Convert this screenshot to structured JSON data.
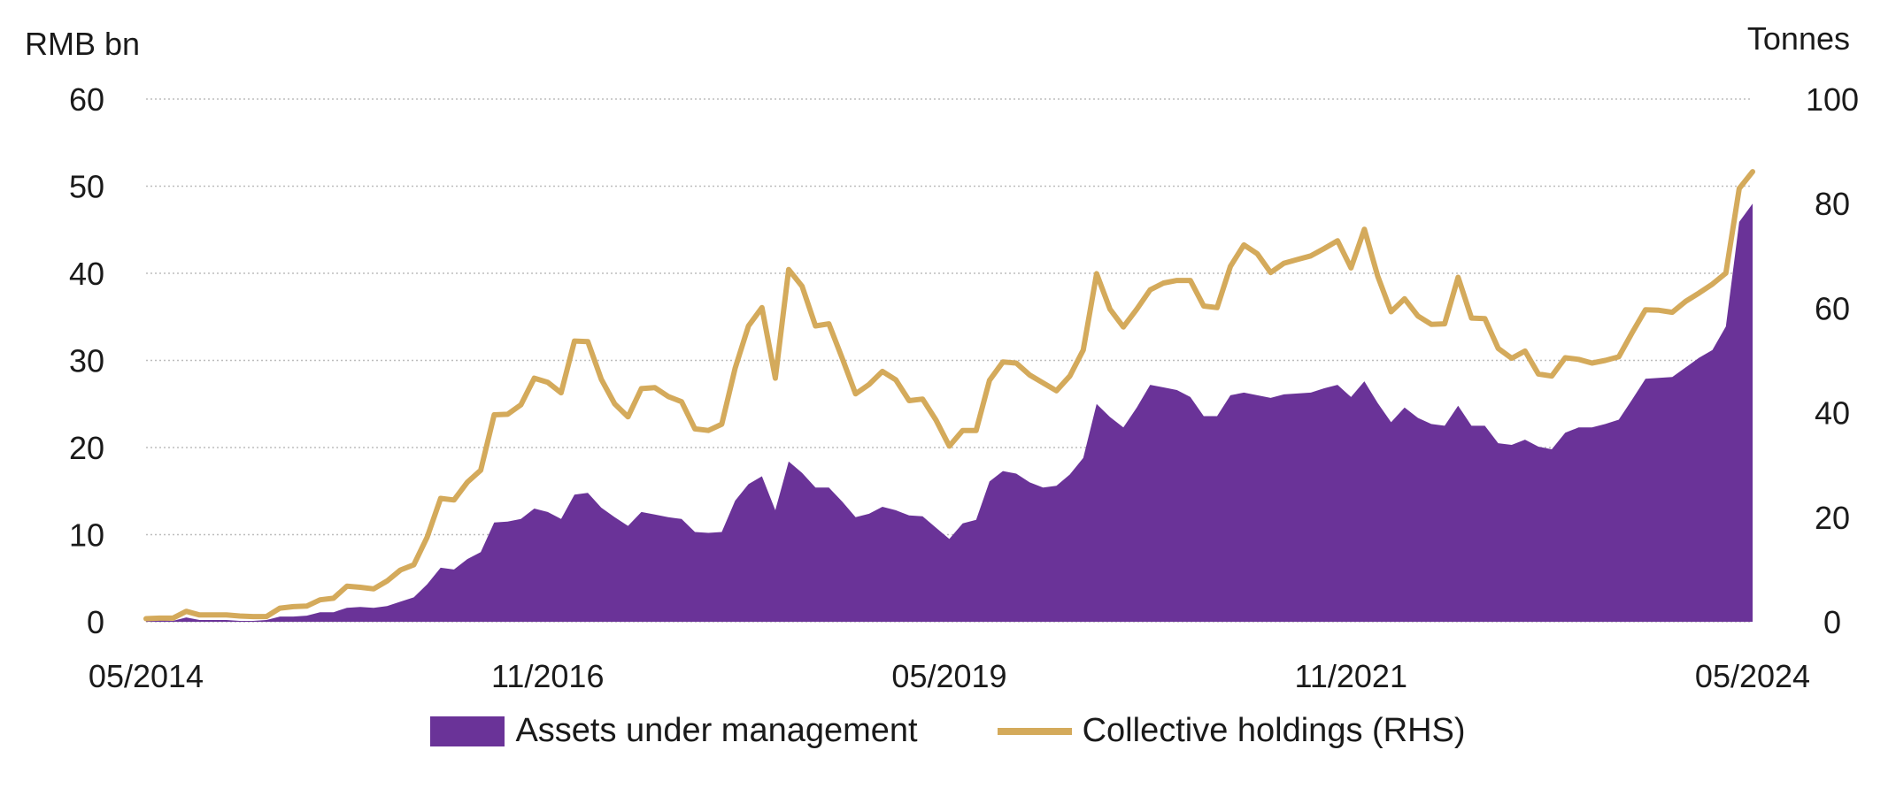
{
  "chart_data": {
    "type": "area",
    "y_left_label": "RMB bn",
    "y_right_label": "Tonnes",
    "y_left_ticks": [
      "0",
      "10",
      "20",
      "30",
      "40",
      "50",
      "60"
    ],
    "y_right_ticks": [
      "0",
      "20",
      "40",
      "60",
      "80",
      "100"
    ],
    "ylim_left": [
      0,
      60
    ],
    "ylim_right": [
      0,
      100
    ],
    "x_ticks": [
      "05/2014",
      "11/2016",
      "05/2019",
      "11/2021",
      "05/2024"
    ],
    "x_tick_positions": [
      0,
      30,
      60,
      90,
      120
    ],
    "grid": true,
    "legend_placement": "bottom",
    "series": [
      {
        "name": "Assets under management",
        "axis": "left",
        "kind": "area",
        "color": "#6a3398",
        "values": [
          0.3,
          0.2,
          0.1,
          0.5,
          0.2,
          0.2,
          0.2,
          0.1,
          0.1,
          0.2,
          0.6,
          0.6,
          0.7,
          1.1,
          1.1,
          1.6,
          1.7,
          1.6,
          1.8,
          2.3,
          2.8,
          4.3,
          6.2,
          6.0,
          7.2,
          8.0,
          11.4,
          11.5,
          11.8,
          13.0,
          12.6,
          11.8,
          14.6,
          14.8,
          13.1,
          12.0,
          11.0,
          12.6,
          12.3,
          12.0,
          11.8,
          10.3,
          10.2,
          10.3,
          13.9,
          15.8,
          16.7,
          12.8,
          18.4,
          17.1,
          15.4,
          15.4,
          13.8,
          12.0,
          12.4,
          13.2,
          12.8,
          12.2,
          12.1,
          10.8,
          9.5,
          11.3,
          11.7,
          16.1,
          17.3,
          17.0,
          16.0,
          15.4,
          15.6,
          16.9,
          18.8,
          25.0,
          23.5,
          22.3,
          24.6,
          27.2,
          26.9,
          26.6,
          25.8,
          23.6,
          23.6,
          26.0,
          26.3,
          26.0,
          25.7,
          26.1,
          26.2,
          26.3,
          26.8,
          27.2,
          25.8,
          27.6,
          25.1,
          22.9,
          24.6,
          23.4,
          22.7,
          22.5,
          24.8,
          22.5,
          22.5,
          20.5,
          20.3,
          20.9,
          20.1,
          19.8,
          21.7,
          22.3,
          22.3,
          22.7,
          23.2,
          25.5,
          27.9,
          28.0,
          28.1,
          29.2,
          30.3,
          31.2,
          33.9,
          45.9,
          48.0
        ],
        "unit": "RMB bn"
      },
      {
        "name": "Collective holdings (RHS)",
        "axis": "right",
        "kind": "line",
        "color": "#d4aa5b",
        "values": [
          0.6,
          0.7,
          0.7,
          2.0,
          1.3,
          1.3,
          1.3,
          1.1,
          1.0,
          1.0,
          2.6,
          2.9,
          3.0,
          4.2,
          4.5,
          6.8,
          6.6,
          6.3,
          7.8,
          9.9,
          10.9,
          16.2,
          23.6,
          23.3,
          26.7,
          29.0,
          39.6,
          39.7,
          41.5,
          46.6,
          45.8,
          43.8,
          53.7,
          53.6,
          46.4,
          41.7,
          39.2,
          44.6,
          44.8,
          43.1,
          42.1,
          36.9,
          36.6,
          37.8,
          48.5,
          56.6,
          60.1,
          46.6,
          67.4,
          64.2,
          56.6,
          57.0,
          50.4,
          43.6,
          45.4,
          47.9,
          46.3,
          42.3,
          42.6,
          38.6,
          33.6,
          36.6,
          36.6,
          46.2,
          49.7,
          49.5,
          47.2,
          45.7,
          44.2,
          47.0,
          52.0,
          66.6,
          59.8,
          56.4,
          59.8,
          63.5,
          64.8,
          65.3,
          65.3,
          60.4,
          60.1,
          68.0,
          72.1,
          70.4,
          66.8,
          68.6,
          69.3,
          70.0,
          71.4,
          72.9,
          67.7,
          75.1,
          66.1,
          59.3,
          61.8,
          58.5,
          56.9,
          57.0,
          65.9,
          58.1,
          58.0,
          52.3,
          50.4,
          51.8,
          47.4,
          47.0,
          50.5,
          50.2,
          49.5,
          50.0,
          50.7,
          55.3,
          59.7,
          59.6,
          59.2,
          61.3,
          62.9,
          64.6,
          66.7,
          82.9,
          86.1
        ],
        "unit": "Tonnes"
      }
    ]
  }
}
